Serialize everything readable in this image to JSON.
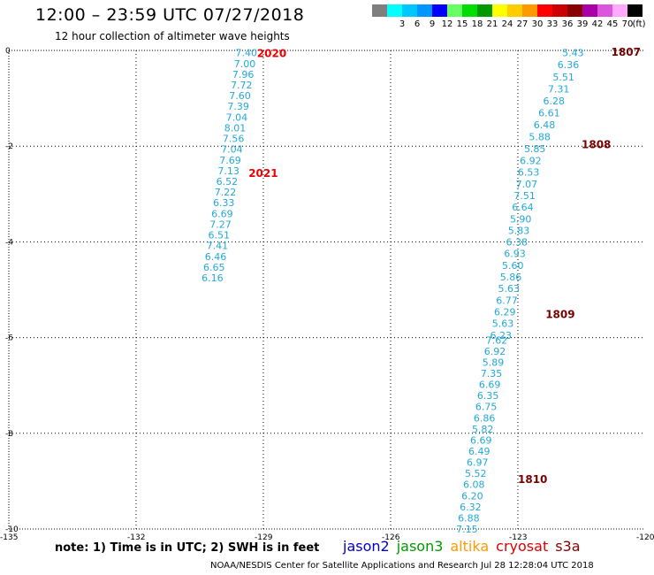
{
  "header": {
    "title": "12:00 – 23:59 UTC 07/27/2018",
    "subtitle": "12 hour collection of altimeter wave heights"
  },
  "color_scale": {
    "unit": "(ft)",
    "bins": [
      {
        "label": "",
        "color": "#7f7f7f"
      },
      {
        "label": "3",
        "color": "#00ffff"
      },
      {
        "label": "6",
        "color": "#00c8ff"
      },
      {
        "label": "9",
        "color": "#0096ff"
      },
      {
        "label": "12",
        "color": "#0000ff"
      },
      {
        "label": "15",
        "color": "#66ff66"
      },
      {
        "label": "18",
        "color": "#00dd00"
      },
      {
        "label": "21",
        "color": "#009900"
      },
      {
        "label": "24",
        "color": "#ffff00"
      },
      {
        "label": "27",
        "color": "#ffcc00"
      },
      {
        "label": "30",
        "color": "#ff9900"
      },
      {
        "label": "33",
        "color": "#ff0000"
      },
      {
        "label": "36",
        "color": "#cc0000"
      },
      {
        "label": "39",
        "color": "#880000"
      },
      {
        "label": "42",
        "color": "#aa00aa"
      },
      {
        "label": "45",
        "color": "#dd55dd"
      },
      {
        "label": "70",
        "color": "#ffaaff"
      },
      {
        "label": "",
        "color": "#000000"
      }
    ]
  },
  "map": {
    "lon_range": [
      -135,
      -120
    ],
    "lat_range": [
      -10,
      0
    ],
    "lon_ticks": [
      "-135",
      "-132",
      "-129",
      "-126",
      "-123",
      "-120"
    ],
    "lat_ticks": [
      "0",
      "-2",
      "-4",
      "-6",
      "-8",
      "-10"
    ],
    "gridline_lons": [
      -132,
      -129,
      -126,
      -123
    ],
    "gridline_lats": [
      -2,
      -4,
      -6,
      -8
    ],
    "wave_color": "#22a8d8",
    "tracks": [
      {
        "start": [
          -129.4,
          -0.05
        ],
        "end": [
          -130.2,
          -4.75
        ],
        "values": [
          "7.40",
          "7.00",
          "7.96",
          "7.72",
          "7.60",
          "7.39",
          "7.04",
          "8.01",
          "7.56",
          "7.04",
          "7.69",
          "7.13",
          "6.52",
          "7.22",
          "6.33",
          "6.69",
          "7.27",
          "6.51",
          "7.41",
          "6.46",
          "6.65",
          "6.16"
        ]
      },
      {
        "start": [
          -121.7,
          -0.05
        ],
        "end": [
          -122.6,
          -2.05
        ],
        "values": [
          "5.43",
          "6.36",
          "5.51",
          "7.31",
          "6.28",
          "6.61",
          "6.48",
          "5.88",
          "5.85"
        ]
      },
      {
        "start": [
          -122.7,
          -2.3
        ],
        "end": [
          -123.4,
          -5.95
        ],
        "values": [
          "6.92",
          "6.53",
          "7.07",
          "7.51",
          "6.64",
          "5.90",
          "5.83",
          "6.38",
          "6.93",
          "5.60",
          "5.86",
          "5.63",
          "6.77",
          "6.29",
          "5.63",
          "6.23"
        ]
      },
      {
        "start": [
          -123.5,
          -6.05
        ],
        "end": [
          -124.2,
          -10.0
        ],
        "values": [
          "7.62",
          "6.92",
          "5.89",
          "7.35",
          "6.69",
          "6.35",
          "6.75",
          "6.86",
          "5.82",
          "6.69",
          "6.49",
          "6.97",
          "5.52",
          "6.08",
          "6.20",
          "6.32",
          "6.88",
          "7.15"
        ]
      }
    ],
    "pass_labels": [
      {
        "text": "2020",
        "lon": -129.15,
        "lat": -0.05,
        "color": "#ee0000"
      },
      {
        "text": "2021",
        "lon": -129.35,
        "lat": -2.55,
        "color": "#ee0000"
      },
      {
        "text": "1807",
        "lon": -120.8,
        "lat": -0.02,
        "color": "#770000"
      },
      {
        "text": "1808",
        "lon": -121.5,
        "lat": -1.95,
        "color": "#770000"
      },
      {
        "text": "1809",
        "lon": -122.35,
        "lat": -5.5,
        "color": "#770000"
      },
      {
        "text": "1810",
        "lon": -123.0,
        "lat": -8.95,
        "color": "#770000"
      }
    ]
  },
  "note": "note:  1) Time is in UTC;  2) SWH is in feet",
  "satellites": [
    {
      "name": "jason2",
      "color": "#0000cc"
    },
    {
      "name": "jason3",
      "color": "#009900"
    },
    {
      "name": "altika",
      "color": "#ff9900"
    },
    {
      "name": "cryosat",
      "color": "#dd0000"
    },
    {
      "name": "s3a",
      "color": "#880000"
    }
  ],
  "footer": "NOAA/NESDIS Center for Satellite Applications and Research   Jul 28 12:28:04 UTC 2018"
}
